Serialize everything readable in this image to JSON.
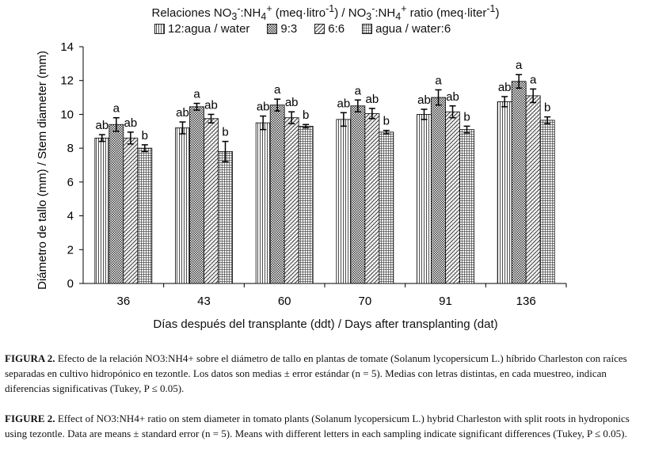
{
  "chart_data": {
    "type": "bar",
    "title": "Relaciones NO3-:NH4+ (meq·litro-1) / NO3-:NH4+ ratio (meq·liter-1)",
    "legend_title_parts": [
      "Relaciones NO",
      "3",
      "-",
      ":NH",
      "4",
      "+",
      " (meq·litro",
      "-1",
      ") / NO",
      "3",
      "-",
      ":NH",
      "4",
      "+",
      " ratio (meq·liter",
      "-1",
      ")"
    ],
    "xlabel": "Días después del transplante (ddt) / Days after transplanting (dat)",
    "ylabel": "Diámetro de tallo (mm) / Stem diameter (mm)",
    "ylim": [
      0,
      14
    ],
    "yticks": [
      "0",
      "2",
      "4",
      "6",
      "8",
      "10",
      "12",
      "14"
    ],
    "categories": [
      "36",
      "43",
      "60",
      "70",
      "91",
      "136"
    ],
    "series": [
      {
        "name": "12:agua / water",
        "pattern": "vlines",
        "values": [
          8.6,
          9.2,
          9.5,
          9.7,
          10.0,
          10.75
        ],
        "errors": [
          0.2,
          0.35,
          0.4,
          0.4,
          0.3,
          0.3
        ],
        "letters": [
          "ab",
          "ab",
          "ab",
          "ab",
          "ab",
          "ab"
        ]
      },
      {
        "name": "9:3",
        "pattern": "dense",
        "values": [
          9.4,
          10.45,
          10.55,
          10.5,
          11.0,
          11.95
        ],
        "errors": [
          0.4,
          0.2,
          0.35,
          0.35,
          0.45,
          0.4
        ],
        "letters": [
          "a",
          "a",
          "a",
          "a",
          "a",
          "a"
        ]
      },
      {
        "name": "6:6",
        "pattern": "diag",
        "values": [
          8.6,
          9.75,
          9.8,
          10.05,
          10.15,
          11.1
        ],
        "errors": [
          0.35,
          0.25,
          0.35,
          0.3,
          0.35,
          0.4
        ],
        "letters": [
          "ab",
          "ab",
          "ab",
          "ab",
          "ab",
          "a"
        ]
      },
      {
        "name": "agua / water:6",
        "pattern": "grid",
        "values": [
          8.0,
          7.8,
          9.3,
          8.95,
          9.1,
          9.65
        ],
        "errors": [
          0.2,
          0.6,
          0.1,
          0.1,
          0.2,
          0.2
        ],
        "letters": [
          "b",
          "b",
          "b",
          "b",
          "b",
          "b"
        ]
      }
    ]
  },
  "captions": {
    "es": {
      "label": "FIGURA 2.",
      "text": "Efecto de la relación NO3:NH4+ sobre el diámetro de tallo en plantas de tomate (Solanum lycopersicum L.) híbrido Charleston con raíces separadas en cultivo hidropónico en tezontle. Los datos son medias ± error estándar (n = 5). Medias con letras distintas, en cada muestreo, indican diferencias significativas (Tukey, P ≤ 0.05)."
    },
    "en": {
      "label": "FIGURE 2.",
      "text": "Effect of NO3:NH4+ ratio on stem diameter in tomato plants (Solanum lycopersicum L.) hybrid Charleston with split roots in hydroponics using tezontle. Data are means ± standard error (n = 5). Means with different letters in each sampling indicate significant differences (Tukey, P ≤ 0.05)."
    }
  }
}
